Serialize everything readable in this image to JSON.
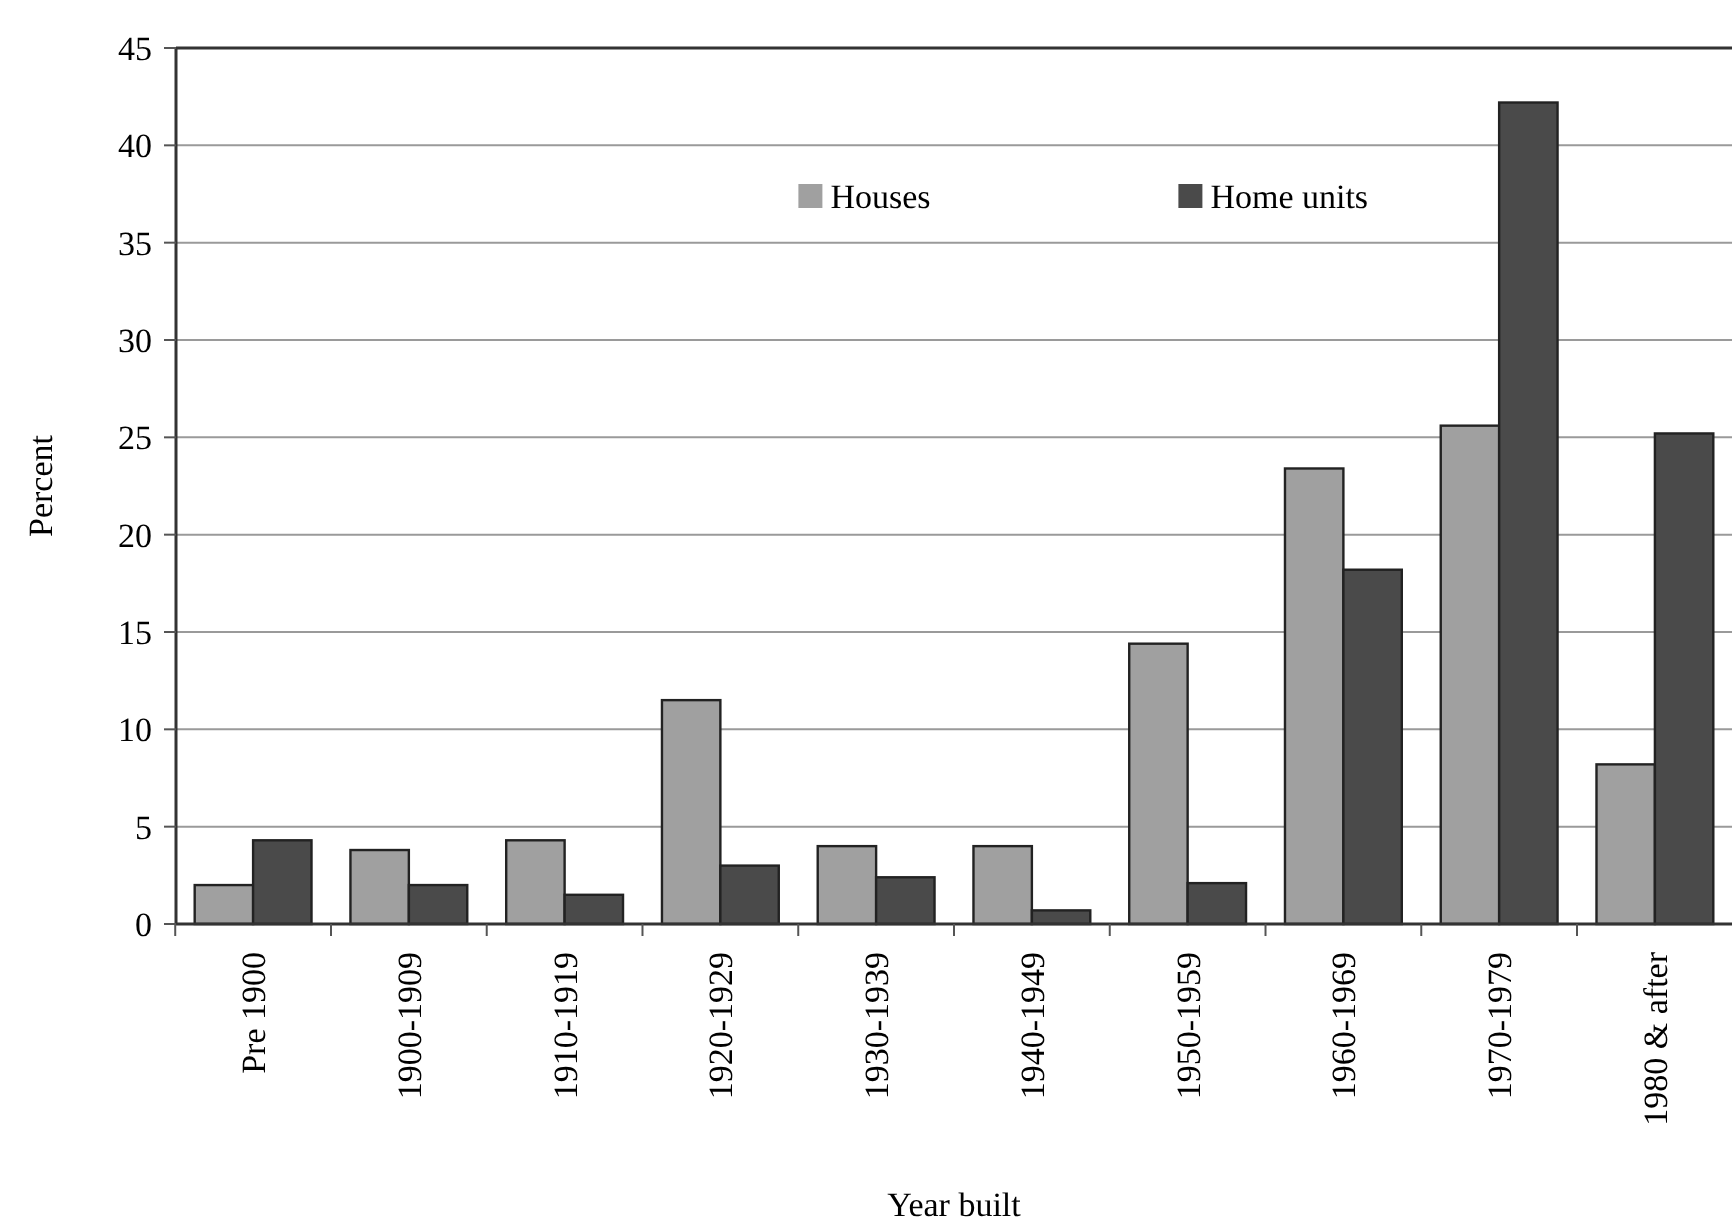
{
  "chart_data": {
    "type": "bar",
    "xlabel": "Year built",
    "ylabel": "Percent",
    "categories": [
      "Pre 1900",
      "1900-1909",
      "1910-1919",
      "1920-1929",
      "1930-1939",
      "1940-1949",
      "1950-1959",
      "1960-1969",
      "1970-1979",
      "1980 & after"
    ],
    "series": [
      {
        "name": "Houses",
        "color": "#a0a0a0",
        "values": [
          2.0,
          3.8,
          4.3,
          11.5,
          4.0,
          4.0,
          14.4,
          23.4,
          25.6,
          8.2
        ]
      },
      {
        "name": "Home units",
        "color": "#4a4a4a",
        "values": [
          4.3,
          2.0,
          1.5,
          3.0,
          2.4,
          0.7,
          2.1,
          18.2,
          42.2,
          25.2
        ]
      }
    ],
    "ylim": [
      0,
      45
    ],
    "yticks": [
      0,
      5,
      10,
      15,
      20,
      25,
      30,
      35,
      40,
      45
    ],
    "grid": "y",
    "legend": "top"
  }
}
